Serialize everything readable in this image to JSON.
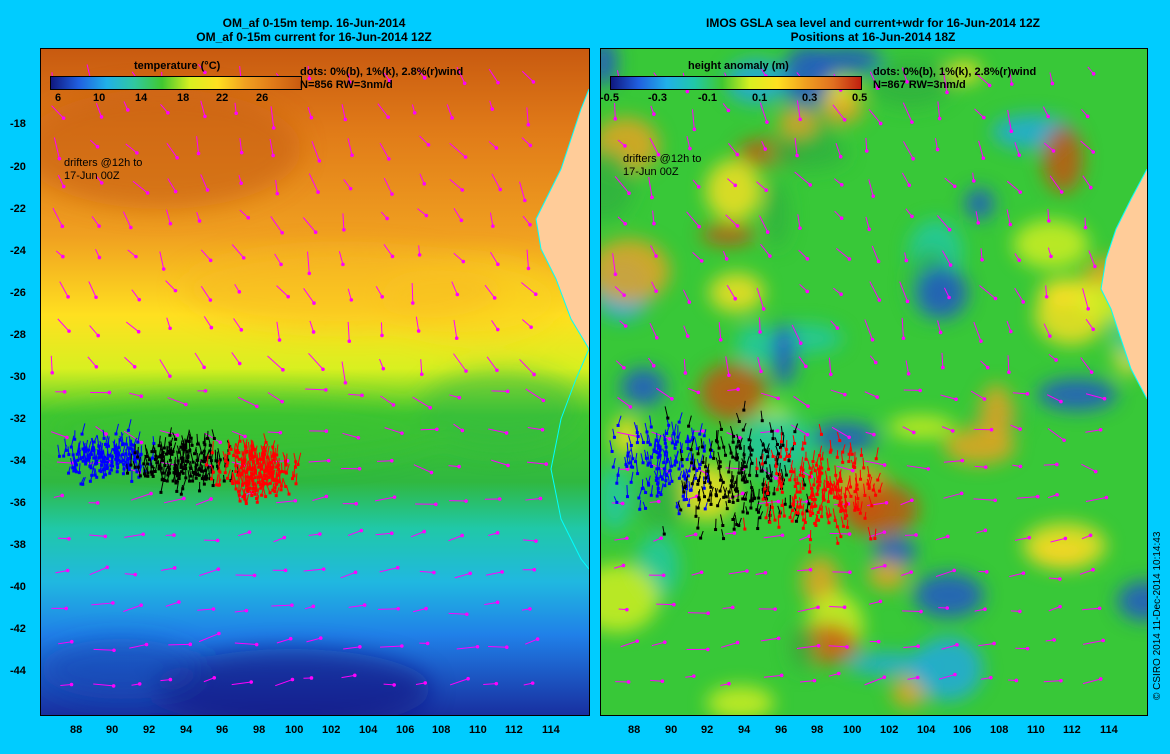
{
  "left_panel": {
    "title_line1": "OM_af 0-15m temp. 16-Jun-2014",
    "title_line2": "OM_af 0-15m current for 16-Jun-2014 12Z",
    "colorbar_label": "temperature (°C)",
    "colorbar_ticks": [
      "6",
      "10",
      "14",
      "18",
      "22",
      "26"
    ],
    "dots_note": "dots: 0%(b), 1%(k), 2.8%(r)wind",
    "count_note": "N=856 RW=3nm/d",
    "drifter_note_line1": "drifters @12h to",
    "drifter_note_line2": "17-Jun 00Z"
  },
  "right_panel": {
    "title_line1": "IMOS GSLA sea level and current+wdr for 16-Jun-2014 12Z",
    "title_line2": "Positions at 16-Jun-2014 18Z",
    "colorbar_label": "height anomaly (m)",
    "colorbar_ticks": [
      "-0.5",
      "-0.3",
      "-0.1",
      "0.1",
      "0.3",
      "0.5"
    ],
    "dots_note": "dots: 0%(b), 1%(k), 2.8%(r)wind",
    "count_note": "N=867 RW=3nm/d",
    "drifter_note_line1": "drifters @12h to",
    "drifter_note_line2": "17-Jun 00Z"
  },
  "y_axis_ticks": [
    "-18",
    "-20",
    "-22",
    "-24",
    "-26",
    "-28",
    "-30",
    "-32",
    "-34",
    "-36",
    "-38",
    "-40",
    "-42",
    "-44"
  ],
  "x_axis_ticks": [
    "88",
    "90",
    "92",
    "94",
    "96",
    "98",
    "100",
    "102",
    "104",
    "106",
    "108",
    "110",
    "112",
    "114"
  ],
  "copyright": "© CSIRO 2014   11-Dec-2014 10:14:43",
  "colors": {
    "background": "#00ccff",
    "drifter_blue": "#0000ff",
    "drifter_black": "#000000",
    "drifter_red": "#ff0000",
    "vector_magenta": "#ff00ff",
    "coast_cyan": "#00ffff",
    "land": "#ffcc99"
  }
}
